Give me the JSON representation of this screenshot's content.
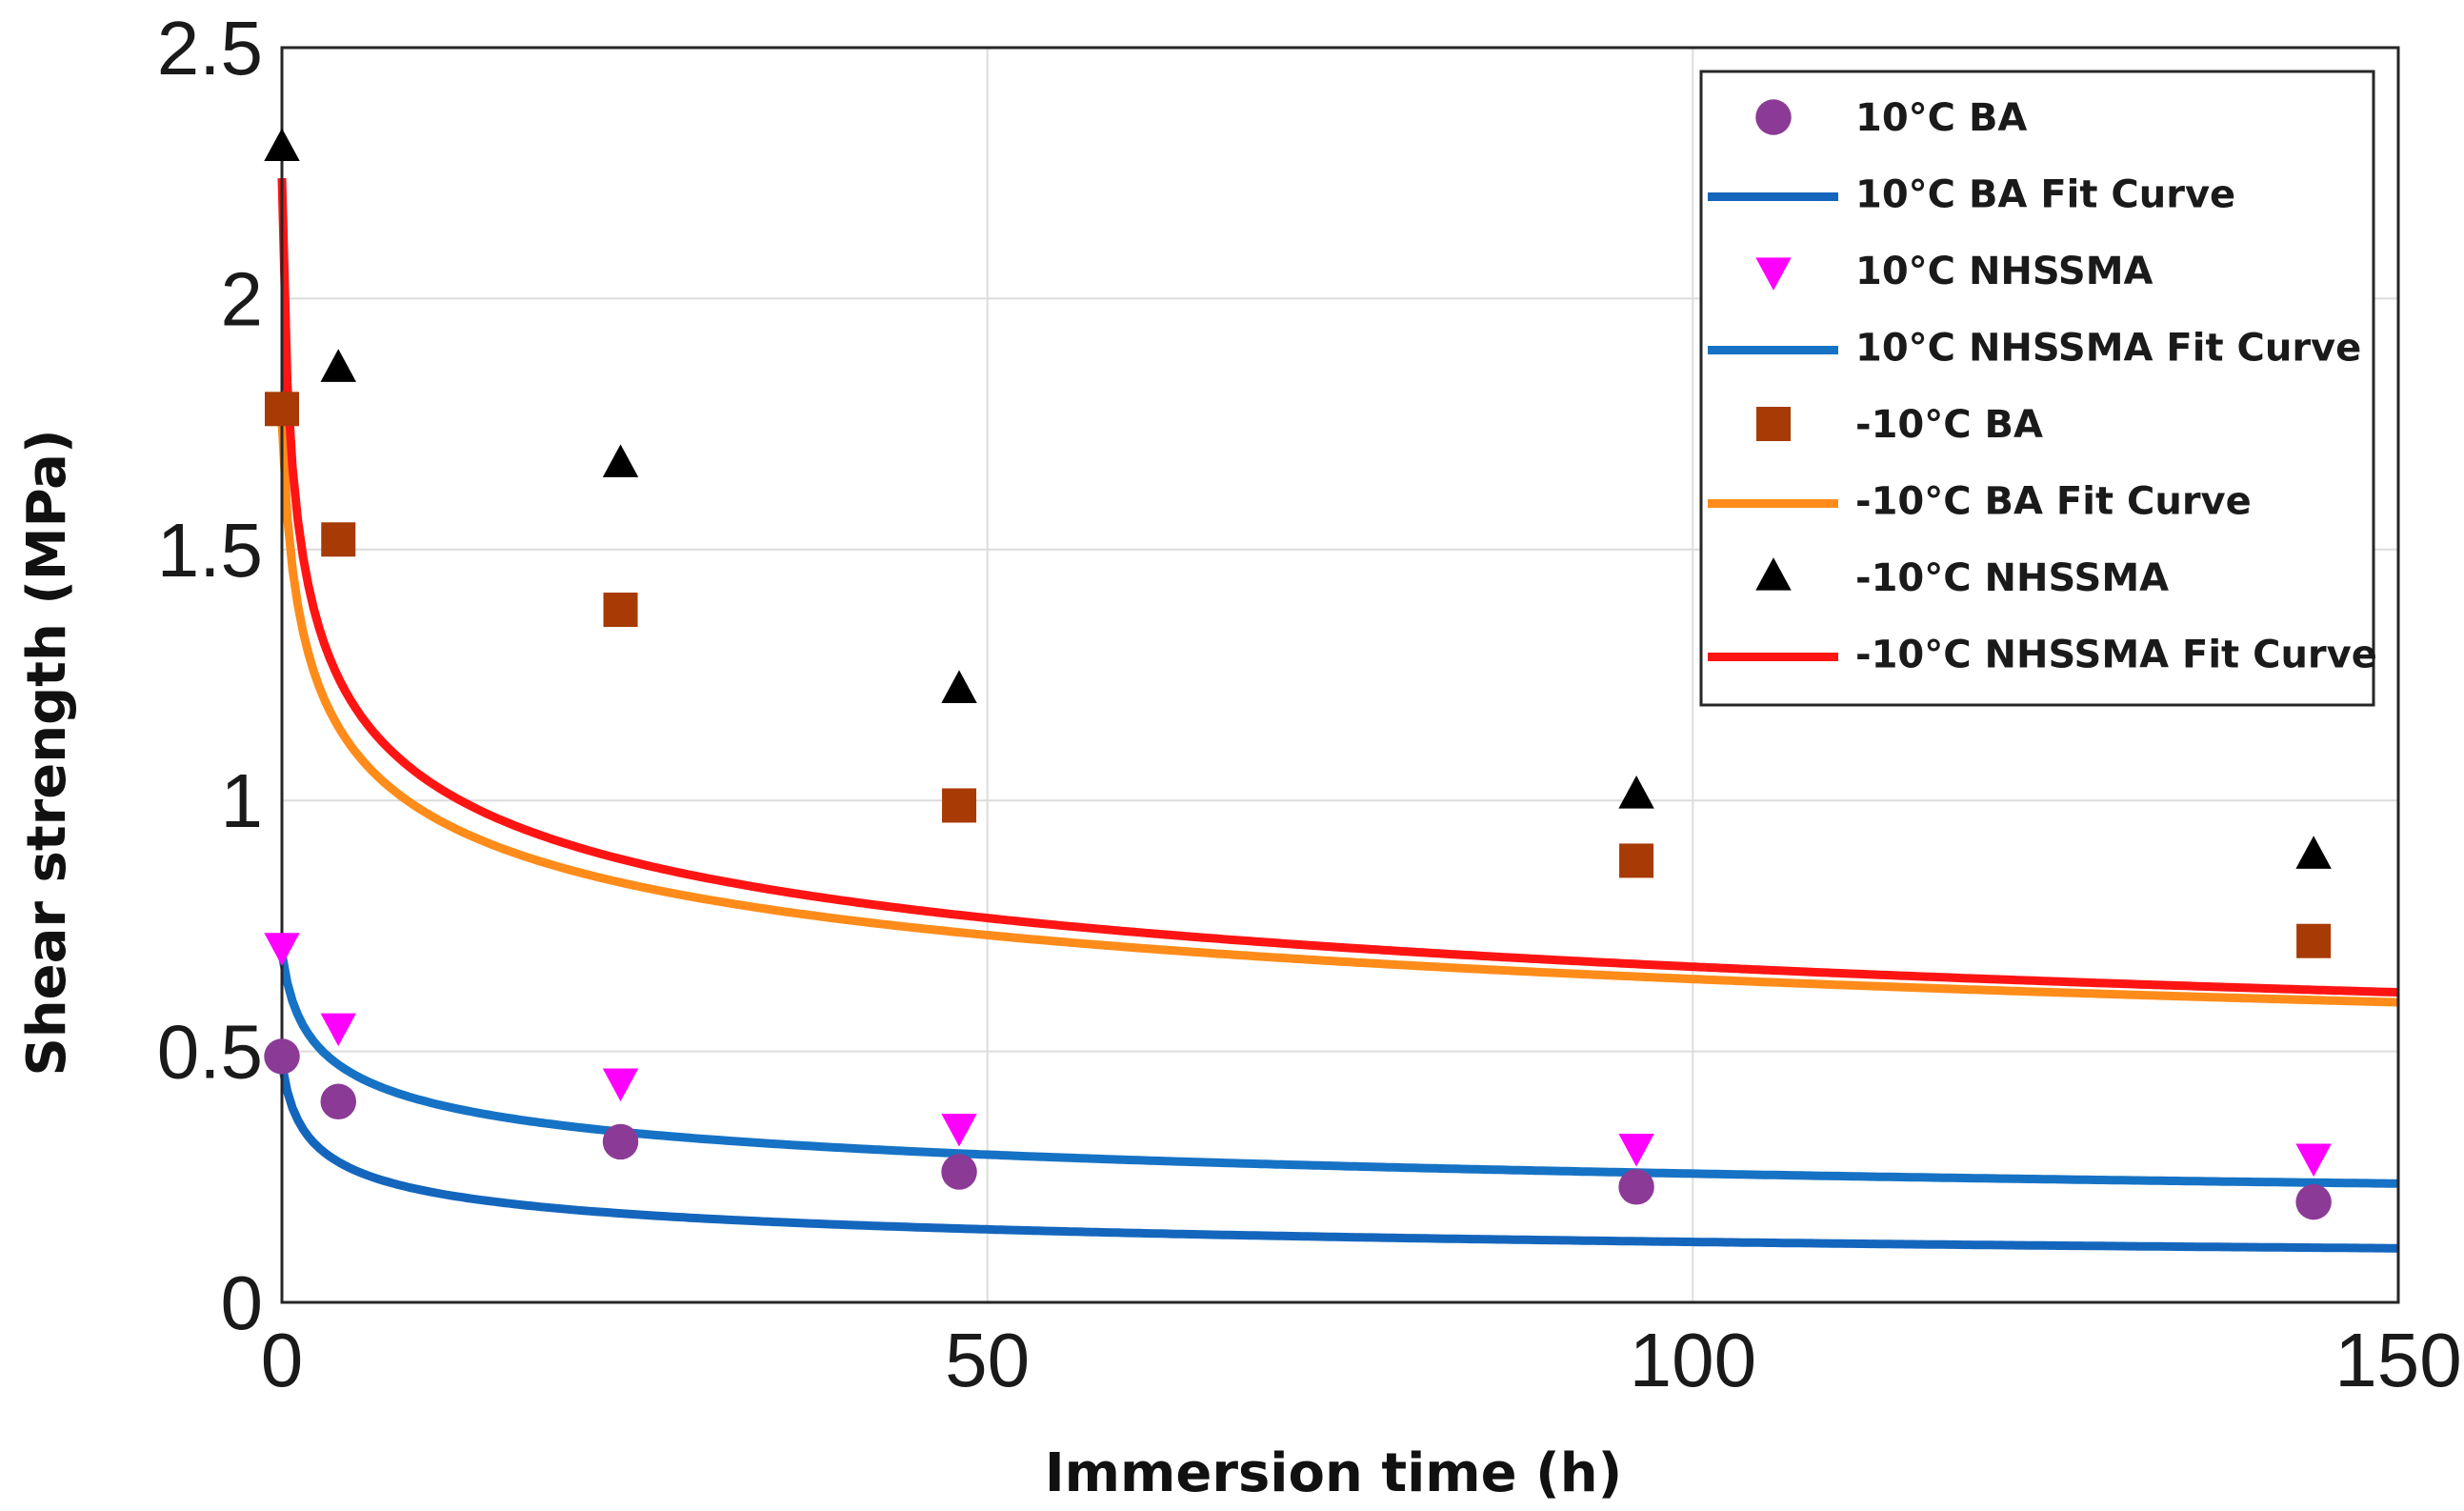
{
  "chart_data": {
    "type": "scatter",
    "title": "",
    "xlabel": "Immersion time (h)",
    "ylabel": "Shear strength (MPa)",
    "xlim": [
      0,
      150
    ],
    "ylim": [
      0,
      2.5
    ],
    "xticks": [
      "0",
      "50",
      "100",
      "150"
    ],
    "yticks": [
      "0",
      "0.5",
      "1",
      "1.5",
      "2",
      "2.5"
    ],
    "grid": true,
    "legend_position": "top-right",
    "x": [
      0,
      4,
      24,
      48,
      96,
      144
    ],
    "series": [
      {
        "name": "10°C BA",
        "kind": "marker",
        "marker": "circle",
        "color": "#8b3a96",
        "values": [
          0.49,
          0.4,
          0.32,
          0.26,
          0.23,
          0.2
        ]
      },
      {
        "name": "10°C BA Fit Curve",
        "kind": "curve",
        "color": "#1466bd",
        "a": 0.474,
        "b": 0.69,
        "c": 0.275
      },
      {
        "name": "10°C NHSSMA",
        "kind": "marker",
        "marker": "triangle-down",
        "color": "#ff00ff",
        "values": [
          0.71,
          0.55,
          0.44,
          0.35,
          0.31,
          0.29
        ]
      },
      {
        "name": "10°C NHSSMA Fit Curve",
        "kind": "curve",
        "color": "#1672c4",
        "a": 0.695,
        "b": 0.69,
        "c": 0.2
      },
      {
        "name": "-10°C BA",
        "kind": "marker",
        "marker": "square",
        "color": "#a73a05",
        "values": [
          1.78,
          1.52,
          1.38,
          0.99,
          0.88,
          0.72
        ]
      },
      {
        "name": "-10°C BA Fit Curve",
        "kind": "curve",
        "color": "#ff8c1a",
        "a": 1.752,
        "b": 0.45,
        "c": 0.185
      },
      {
        "name": "-10°C NHSSMA",
        "kind": "marker",
        "marker": "triangle-up",
        "color": "#000000",
        "values": [
          2.3,
          1.86,
          1.67,
          1.22,
          1.01,
          0.89
        ]
      },
      {
        "name": "-10°C NHSSMA Fit Curve",
        "kind": "curve",
        "color": "#ff1414",
        "a": 2.24,
        "b": 0.21,
        "c": 0.196
      }
    ]
  }
}
